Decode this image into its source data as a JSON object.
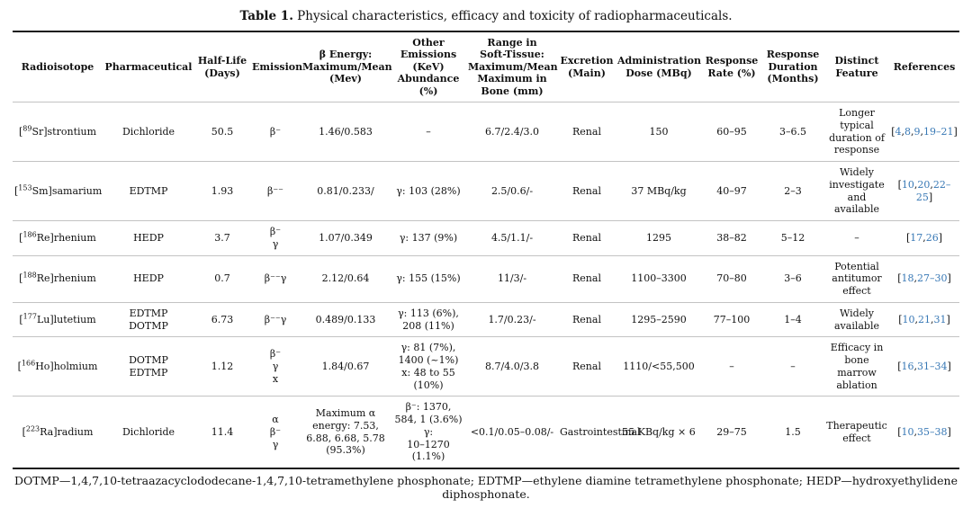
{
  "title": {
    "label": "Table 1.",
    "text": " Physical characteristics, efficacy and toxicity of radiopharmaceuticals."
  },
  "colors": {
    "citation_link": "#3878b5",
    "rule_dark": "#1a1a1a",
    "rule_light": "#c3c3c3"
  },
  "table": {
    "headers": [
      [
        "Radioisotope"
      ],
      [
        "Pharmaceutical"
      ],
      [
        "Half-Life",
        "(Days)"
      ],
      [
        "Emission"
      ],
      [
        "β Energy:",
        "Maximum/Mean",
        "(Mev)"
      ],
      [
        "Other",
        "Emissions",
        "(KeV)",
        "Abundance",
        "(%)"
      ],
      [
        "Range in",
        "Soft-Tissue:",
        "Maximum/Mean",
        "Maximum in",
        "Bone (mm)"
      ],
      [
        "Excretion",
        "(Main)"
      ],
      [
        "Administration",
        "Dose (MBq)"
      ],
      [
        "Response",
        "Rate (%)"
      ],
      [
        "Response",
        "Duration",
        "(Months)"
      ],
      [
        "Distinct",
        "Feature"
      ],
      [
        "References"
      ]
    ],
    "rows": [
      {
        "iso": {
          "pre": "[",
          "sup": "89",
          "post": "Sr]strontium"
        },
        "pharmaceutical": [
          "Dichloride"
        ],
        "half_life": "50.5",
        "emission": [
          "β⁻"
        ],
        "beta_energy": [
          "1.46/0.583"
        ],
        "other_emissions": [
          "–"
        ],
        "range": "6.7/2.4/3.0",
        "excretion": "Renal",
        "admin_dose": "150",
        "response_rate": "60–95",
        "response_duration": "3–6.5",
        "distinct_feature": "Longer typical duration of response",
        "references": [
          "4",
          "8",
          "9",
          "19–21"
        ]
      },
      {
        "iso": {
          "pre": "[",
          "sup": "153",
          "post": "Sm]samarium"
        },
        "pharmaceutical": [
          "EDTMP"
        ],
        "half_life": "1.93",
        "emission": [
          "β⁻⁻"
        ],
        "beta_energy": [
          "0.81/0.233/"
        ],
        "other_emissions": [
          "γ: 103 (28%)"
        ],
        "range": "2.5/0.6/-",
        "excretion": "Renal",
        "admin_dose": "37 MBq/kg",
        "response_rate": "40–97",
        "response_duration": "2–3",
        "distinct_feature": "Widely investigate and available",
        "references": [
          "10",
          "20",
          "22–25"
        ]
      },
      {
        "iso": {
          "pre": "[",
          "sup": "186",
          "post": "Re]rhenium"
        },
        "pharmaceutical": [
          "HEDP"
        ],
        "half_life": "3.7",
        "emission": [
          "β⁻",
          "γ"
        ],
        "beta_energy": [
          "1.07/0.349"
        ],
        "other_emissions": [
          "γ: 137 (9%)"
        ],
        "range": "4.5/1.1/-",
        "excretion": "Renal",
        "admin_dose": "1295",
        "response_rate": "38–82",
        "response_duration": "5–12",
        "distinct_feature": "–",
        "references": [
          "17",
          "26"
        ]
      },
      {
        "iso": {
          "pre": "[",
          "sup": "188",
          "post": "Re]rhenium"
        },
        "pharmaceutical": [
          "HEDP"
        ],
        "half_life": "0.7",
        "emission": [
          "β⁻⁻γ"
        ],
        "beta_energy": [
          "2.12/0.64"
        ],
        "other_emissions": [
          "γ: 155 (15%)"
        ],
        "range": "11/3/-",
        "excretion": "Renal",
        "admin_dose": "1100–3300",
        "response_rate": "70–80",
        "response_duration": "3–6",
        "distinct_feature": "Potential antitumor effect",
        "references": [
          "18",
          "27–30"
        ]
      },
      {
        "iso": {
          "pre": "[",
          "sup": "177",
          "post": "Lu]lutetium"
        },
        "pharmaceutical": [
          "EDTMP",
          "DOTMP"
        ],
        "half_life": "6.73",
        "emission": [
          "β⁻⁻γ"
        ],
        "beta_energy": [
          "0.489/0.133"
        ],
        "other_emissions": [
          "γ: 113 (6%),",
          "208 (11%)"
        ],
        "range": "1.7/0.23/-",
        "excretion": "Renal",
        "admin_dose": "1295–2590",
        "response_rate": "77–100",
        "response_duration": "1–4",
        "distinct_feature": "Widely available",
        "references": [
          "10",
          "21",
          "31"
        ]
      },
      {
        "iso": {
          "pre": "[",
          "sup": "166",
          "post": "Ho]holmium"
        },
        "pharmaceutical": [
          "DOTMP",
          "EDTMP"
        ],
        "half_life": "1.12",
        "emission": [
          "β⁻",
          "γ",
          "x"
        ],
        "beta_energy": [
          "1.84/0.67"
        ],
        "other_emissions": [
          "γ: 81 (7%),",
          "1400 (~1%)",
          "x: 48 to 55",
          "(10%)"
        ],
        "range": "8.7/4.0/3.8",
        "excretion": "Renal",
        "admin_dose": "1110/<55,500",
        "response_rate": "–",
        "response_duration": "–",
        "distinct_feature": "Efficacy in bone marrow ablation",
        "references": [
          "16",
          "31–34"
        ]
      },
      {
        "iso": {
          "pre": "[",
          "sup": "223",
          "post": "Ra]radium"
        },
        "pharmaceutical": [
          "Dichloride"
        ],
        "half_life": "11.4",
        "emission": [
          "α",
          "β⁻",
          "γ"
        ],
        "beta_energy": [
          "Maximum α",
          "energy: 7.53,",
          "6.88, 6.68, 5.78",
          "(95.3%)"
        ],
        "other_emissions": [
          "β⁻: 1370,",
          "584, 1 (3.6%)",
          "γ:",
          "10–1270",
          "(1.1%)"
        ],
        "range": "<0.1/0.05–0.08/-",
        "excretion": "Gastrointestinal",
        "admin_dose": "55 KBq/kg × 6",
        "response_rate": "29–75",
        "response_duration": "1.5",
        "distinct_feature": "Therapeutic effect",
        "references": [
          "10",
          "35–38"
        ]
      }
    ]
  },
  "footnote": "DOTMP—1,4,7,10-tetraazacyclododecane-1,4,7,10-tetramethylene phosphonate; EDTMP—ethylene diamine tetramethylene phosphonate; HEDP—hydroxyethylidene diphosphonate."
}
